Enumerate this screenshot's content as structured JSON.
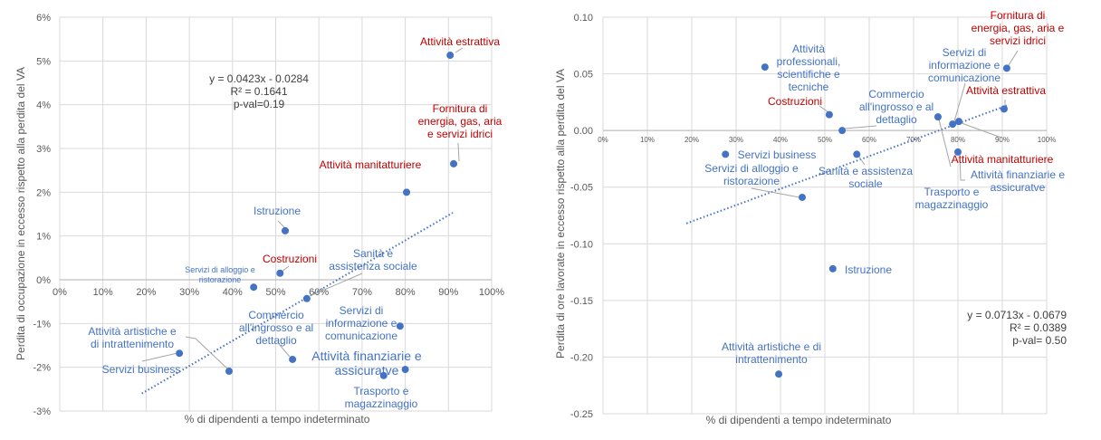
{
  "chart_data": [
    {
      "type": "scatter",
      "xlabel": "% di dipendenti a tempo indeterminato",
      "ylabel": "Perdita di occupazione in eccesso rispetto alla perdita del VA",
      "xlim": [
        0,
        1
      ],
      "ylim": [
        -0.03,
        0.06
      ],
      "x_ticks": [
        "0%",
        "10%",
        "20%",
        "30%",
        "40%",
        "50%",
        "60%",
        "70%",
        "80%",
        "90%",
        "100%"
      ],
      "y_ticks": [
        "6%",
        "5%",
        "4%",
        "3%",
        "2%",
        "1%",
        "0%",
        "-1%",
        "-2%",
        "-3%"
      ],
      "grid": true,
      "point_color": "#4472C4",
      "label_colors": {
        "red": "#C00000",
        "blue": "#4472C4"
      },
      "equation": [
        "y = 0.0423x - 0.0284",
        "R² = 0.1641",
        "p-val=0.19"
      ],
      "trendline": {
        "style": "dotted",
        "color": "#4472C4",
        "from": [
          0.19,
          -0.026
        ],
        "to": [
          0.91,
          0.0153
        ]
      },
      "points": [
        {
          "label": [
            "Attività estrattiva"
          ],
          "x": 0.904,
          "y": 0.0513,
          "color": "red"
        },
        {
          "label": [
            "Fornitura di",
            "energia, gas, aria",
            "e servizi idrici"
          ],
          "x": 0.912,
          "y": 0.0265,
          "color": "red"
        },
        {
          "label": [
            "Attività manitatturiere"
          ],
          "x": 0.803,
          "y": 0.02,
          "color": "red"
        },
        {
          "label": [
            "Istruzione"
          ],
          "x": 0.522,
          "y": 0.0112,
          "color": "blue"
        },
        {
          "label": [
            "Costruzioni"
          ],
          "x": 0.51,
          "y": 0.0015,
          "color": "red"
        },
        {
          "label": [
            "Servizi di alloggio e",
            "ristorazione"
          ],
          "x": 0.449,
          "y": -0.0017,
          "color": "blue"
        },
        {
          "label": [
            "Sanità e",
            "assistenza sociale"
          ],
          "x": 0.572,
          "y": -0.0043,
          "color": "blue"
        },
        {
          "label": [
            "Servizi di",
            "informazione e",
            "comunicazione"
          ],
          "x": 0.788,
          "y": -0.0106,
          "color": "blue"
        },
        {
          "label": [
            "Commercio",
            "all'ingrosso e al",
            "dettaglio"
          ],
          "x": 0.539,
          "y": -0.0182,
          "color": "blue"
        },
        {
          "label": [
            "Attività finanziarie e",
            "assicuratve"
          ],
          "x": 0.8,
          "y": -0.0205,
          "color": "blue"
        },
        {
          "label": [
            "Trasporto e",
            "magazzinaggio"
          ],
          "x": 0.75,
          "y": -0.0219,
          "color": "blue"
        },
        {
          "label": [
            "Attività artistiche e",
            "di intrattenimento"
          ],
          "x": 0.392,
          "y": -0.0209,
          "color": "blue"
        },
        {
          "label": [
            "Servizi business"
          ],
          "x": 0.277,
          "y": -0.0168,
          "color": "blue"
        }
      ]
    },
    {
      "type": "scatter",
      "xlabel": "% di dipendenti a tempo indeterminato",
      "ylabel": "Perdita di ore lavorate in eccesso rispetto alla perdita del VA",
      "xlim": [
        0,
        1
      ],
      "ylim": [
        -0.25,
        0.1
      ],
      "x_ticks": [
        "0%",
        "10%",
        "20%",
        "30%",
        "40%",
        "50%",
        "60%",
        "70%",
        "80%",
        "90%",
        "100%"
      ],
      "y_ticks": [
        "0.10",
        "0.05",
        "0.00",
        "-0.05",
        "-0.10",
        "-0.15",
        "-0.20",
        "-0.25"
      ],
      "grid": true,
      "point_color": "#4472C4",
      "label_colors": {
        "red": "#C00000",
        "blue": "#4472C4"
      },
      "equation": [
        "y = 0.0713x - 0.0679",
        "R² = 0.0389",
        "p-val= 0.50"
      ],
      "trendline": {
        "style": "dotted",
        "color": "#4472C4",
        "from": [
          0.188,
          -0.082
        ],
        "to": [
          0.91,
          0.022
        ]
      },
      "points": [
        {
          "label": [
            "Attività",
            "professionali,",
            "scientifiche e",
            "tecniche"
          ],
          "x": 0.365,
          "y": 0.056,
          "color": "blue"
        },
        {
          "label": [
            "Fornitura di",
            "energia, gas, aria e",
            "servizi idrici"
          ],
          "x": 0.91,
          "y": 0.055,
          "color": "red"
        },
        {
          "label": [
            "Servizi di",
            "informazione e",
            "comunicazione"
          ],
          "x": 0.788,
          "y": 0.0056,
          "color": "blue"
        },
        {
          "label": [
            "Attività estrattiva"
          ],
          "x": 0.904,
          "y": 0.019,
          "color": "red"
        },
        {
          "label": [
            "Costruzioni"
          ],
          "x": 0.51,
          "y": 0.014,
          "color": "red"
        },
        {
          "label": [
            "Commercio",
            "all'ingrosso e al",
            "dettaglio"
          ],
          "x": 0.539,
          "y": 0.0,
          "color": "blue"
        },
        {
          "label": [
            "Attività manitatturiere"
          ],
          "x": 0.802,
          "y": 0.008,
          "color": "red"
        },
        {
          "label": [
            "Attività finanziarie e",
            "assicuratve"
          ],
          "x": 0.8,
          "y": -0.019,
          "color": "blue"
        },
        {
          "label": [
            "Sanità e assistenza",
            "sociale"
          ],
          "x": 0.572,
          "y": -0.021,
          "color": "blue"
        },
        {
          "label": [
            "Trasporto e",
            "magazzinaggio"
          ],
          "x": 0.755,
          "y": 0.012,
          "color": "blue"
        },
        {
          "label": [
            "Servizi business"
          ],
          "x": 0.276,
          "y": -0.021,
          "color": "blue"
        },
        {
          "label": [
            "Servizi di alloggio e",
            "ristorazione"
          ],
          "x": 0.449,
          "y": -0.059,
          "color": "blue"
        },
        {
          "label": [
            "Istruzione"
          ],
          "x": 0.518,
          "y": -0.122,
          "color": "blue"
        },
        {
          "label": [
            "Attività artistiche e di",
            "intrattenimento"
          ],
          "x": 0.396,
          "y": -0.215,
          "color": "blue"
        }
      ]
    }
  ]
}
